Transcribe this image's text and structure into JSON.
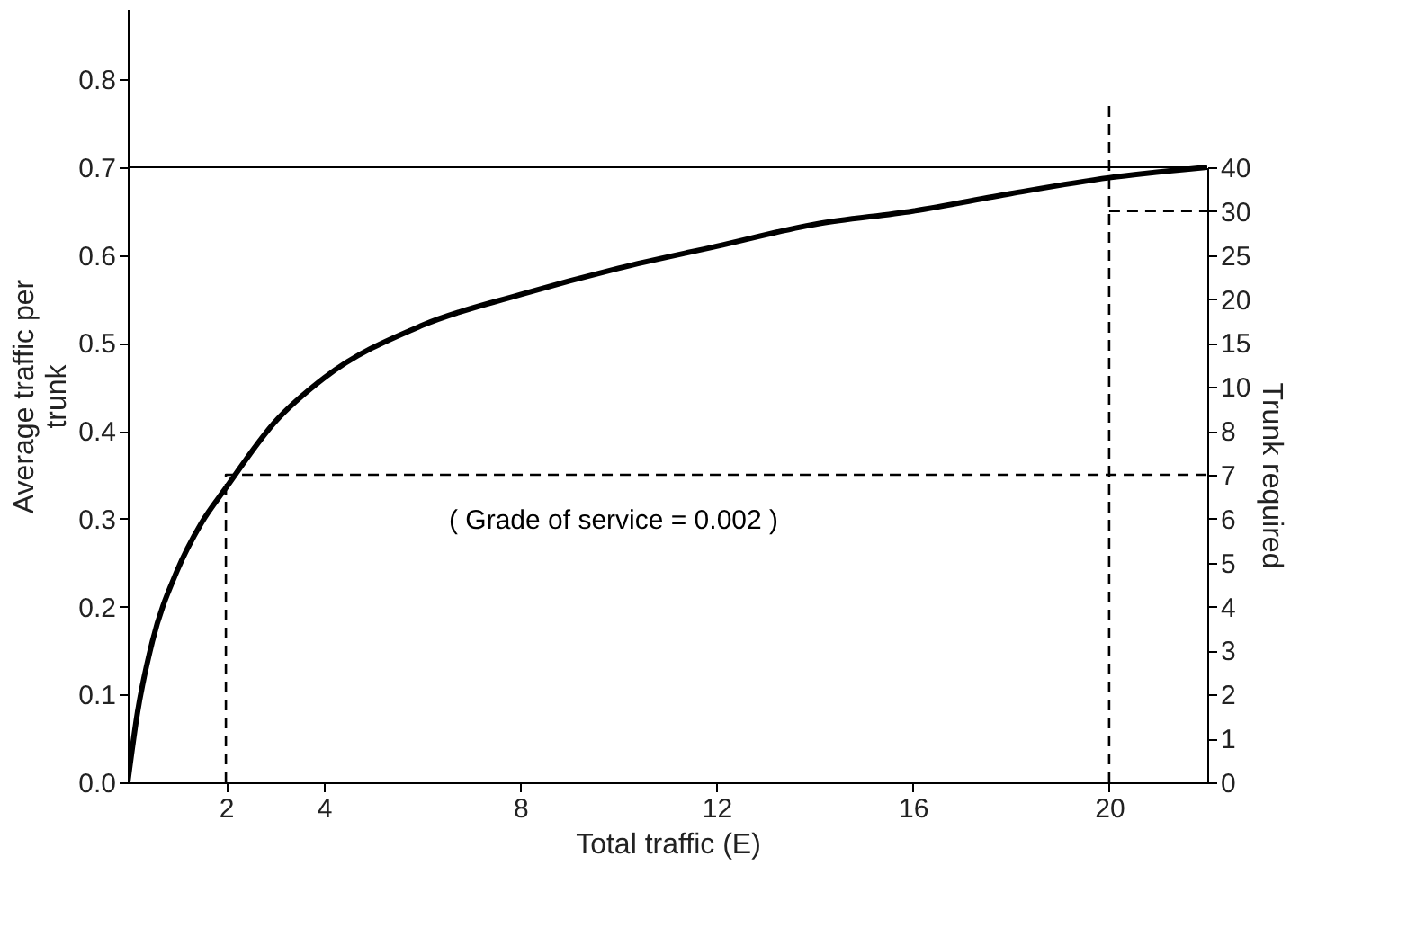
{
  "chart_data": {
    "type": "line",
    "xlabel": "Total traffic (E)",
    "ylabel": "Average traffic per trunk",
    "y2label": "Trunk required",
    "xlim": [
      0,
      22
    ],
    "xticks": [
      2,
      4,
      8,
      12,
      16,
      20
    ],
    "ylim": [
      0,
      0.88
    ],
    "yticks": [
      {
        "value": 0,
        "label": "0.0"
      },
      0.1,
      0.2,
      0.3,
      0.4,
      0.5,
      0.6,
      0.7,
      0.8
    ],
    "y2_categories": [
      "40",
      "30",
      "25",
      "20",
      "15",
      "10",
      "8",
      "7",
      "6",
      "5",
      "4",
      "3",
      "2",
      "1",
      "0"
    ],
    "grid": false,
    "series": [
      {
        "color": "#000000",
        "line_style": "solid",
        "x": [
          0,
          0.2,
          0.5,
          1,
          1.5,
          2,
          3,
          4,
          6,
          8,
          10,
          12,
          14,
          16,
          18,
          20,
          22
        ],
        "values": [
          0,
          0.08,
          0.16,
          0.24,
          0.295,
          0.335,
          0.41,
          0.46,
          0.52,
          0.555,
          0.585,
          0.61,
          0.635,
          0.65,
          0.67,
          0.688,
          0.7
        ]
      },
      {
        "color": "#000000",
        "line_style": "dashed",
        "x": [
          2,
          2,
          22
        ],
        "values": [
          0,
          0.35,
          0.35
        ]
      },
      {
        "color": "#000000",
        "line_style": "dashed",
        "x": [
          20,
          20
        ],
        "values": [
          0,
          0.77
        ]
      },
      {
        "color": "#000000",
        "line_style": "dashed",
        "x": [
          20,
          22
        ],
        "values": [
          0.65,
          0.65
        ]
      }
    ],
    "ref_lines": [
      {
        "axis": "y",
        "value": 0.7,
        "color": "#000000",
        "line_style": "solid"
      }
    ],
    "annotations": [
      "( Grade of service = 0.002 )"
    ]
  }
}
